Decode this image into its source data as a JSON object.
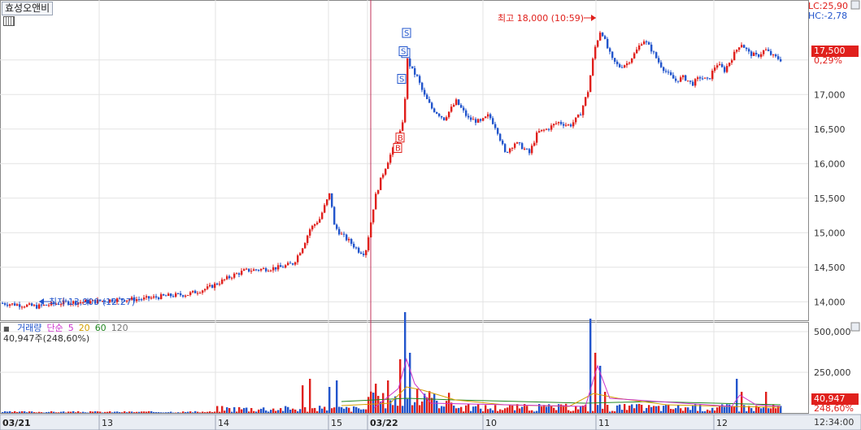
{
  "title": "효성오앤비",
  "limits": {
    "lc": "LC:25,90",
    "hc": "HC:-2,78"
  },
  "current": {
    "price_label": "17,500",
    "change_label": "0,29%",
    "price": 17500
  },
  "annotations": {
    "high_label": "최고 18,000 (10:59)",
    "high_value": 18000,
    "low_label": "최저 13,900 (12:27)",
    "low_value": 13900
  },
  "volume_panel": {
    "legend": {
      "name": "거래량",
      "ma_type": "단순",
      "periods": [
        "5",
        "20",
        "60",
        "120"
      ]
    },
    "readout": "40,947주(248,60%)",
    "current_label": "40,947",
    "ratio_label": "248,60%",
    "current_value": 40947
  },
  "x_axis": {
    "labels": [
      "03/21",
      "13",
      "14",
      "15",
      "03/22",
      "10",
      "11",
      "12"
    ],
    "time_readout": "12:34:00"
  },
  "colors": {
    "up": "#e0201c",
    "down": "#2255cc",
    "ma5": "#cc33cc",
    "ma20": "#d4a000",
    "ma60": "#228822",
    "ma120": "#777777",
    "grid": "#e3e3e3",
    "divider": "#c0305a"
  },
  "chart_data": {
    "type": "candlestick",
    "series": [
      {
        "name": "거래량",
        "type": "bar"
      }
    ],
    "y_price": {
      "ticks": [
        14000,
        14500,
        15000,
        15500,
        16000,
        16500,
        17000,
        17500
      ],
      "tick_labels": [
        "14,000",
        "14,500",
        "15,000",
        "15,500",
        "16,000",
        "16,500",
        "17,000",
        "17,500"
      ],
      "range": [
        13850,
        18250
      ]
    },
    "y_volume": {
      "ticks": [
        250000,
        500000
      ],
      "tick_labels": [
        "250,000",
        "500,000"
      ],
      "range": [
        0,
        560000
      ]
    },
    "trade_markers": [
      {
        "label": "S",
        "price": 17650
      },
      {
        "label": "S",
        "price": 17500
      },
      {
        "label": "S",
        "price": 17550
      },
      {
        "label": "S",
        "price": 17150
      },
      {
        "label": "B",
        "price": 16300
      },
      {
        "label": "B",
        "price": 16150
      }
    ],
    "close_path": [
      [
        0,
        13980
      ],
      [
        20,
        13960
      ],
      [
        45,
        13930
      ],
      [
        60,
        13960
      ],
      [
        80,
        13990
      ],
      [
        110,
        14000
      ],
      [
        140,
        14030
      ],
      [
        175,
        14040
      ],
      [
        200,
        14080
      ],
      [
        230,
        14110
      ],
      [
        255,
        14200
      ],
      [
        270,
        14290
      ],
      [
        285,
        14380
      ],
      [
        300,
        14450
      ],
      [
        320,
        14470
      ],
      [
        345,
        14500
      ],
      [
        360,
        14560
      ],
      [
        372,
        14820
      ],
      [
        380,
        15050
      ],
      [
        392,
        15200
      ],
      [
        398,
        15380
      ],
      [
        405,
        15580
      ],
      [
        410,
        15100
      ],
      [
        418,
        14980
      ],
      [
        428,
        14880
      ],
      [
        440,
        14740
      ],
      [
        448,
        14700
      ],
      [
        452,
        14950
      ],
      [
        460,
        15500
      ],
      [
        468,
        15800
      ],
      [
        478,
        16100
      ],
      [
        488,
        16350
      ],
      [
        495,
        16600
      ],
      [
        500,
        17500
      ],
      [
        506,
        17350
      ],
      [
        512,
        17250
      ],
      [
        520,
        17000
      ],
      [
        530,
        16800
      ],
      [
        545,
        16650
      ],
      [
        560,
        16900
      ],
      [
        575,
        16650
      ],
      [
        590,
        16600
      ],
      [
        600,
        16700
      ],
      [
        610,
        16500
      ],
      [
        620,
        16150
      ],
      [
        632,
        16300
      ],
      [
        640,
        16250
      ],
      [
        650,
        16150
      ],
      [
        660,
        16450
      ],
      [
        672,
        16500
      ],
      [
        685,
        16600
      ],
      [
        700,
        16550
      ],
      [
        712,
        16700
      ],
      [
        722,
        17050
      ],
      [
        730,
        17650
      ],
      [
        738,
        17950
      ],
      [
        745,
        17700
      ],
      [
        752,
        17500
      ],
      [
        760,
        17400
      ],
      [
        770,
        17450
      ],
      [
        780,
        17600
      ],
      [
        790,
        17800
      ],
      [
        800,
        17650
      ],
      [
        810,
        17450
      ],
      [
        820,
        17300
      ],
      [
        830,
        17200
      ],
      [
        840,
        17250
      ],
      [
        850,
        17150
      ],
      [
        860,
        17250
      ],
      [
        870,
        17200
      ],
      [
        880,
        17450
      ],
      [
        890,
        17350
      ],
      [
        900,
        17550
      ],
      [
        910,
        17750
      ],
      [
        920,
        17600
      ],
      [
        930,
        17550
      ],
      [
        940,
        17650
      ],
      [
        950,
        17550
      ],
      [
        960,
        17500
      ]
    ],
    "volume_spikes": [
      [
        490,
        330000
      ],
      [
        498,
        620000
      ],
      [
        503,
        370000
      ],
      [
        512,
        150000
      ],
      [
        726,
        580000
      ],
      [
        732,
        370000
      ],
      [
        737,
        290000
      ],
      [
        742,
        130000
      ],
      [
        905,
        210000
      ],
      [
        912,
        130000
      ],
      [
        940,
        130000
      ],
      [
        404,
        160000
      ],
      [
        412,
        200000
      ],
      [
        380,
        210000
      ],
      [
        372,
        170000
      ],
      [
        460,
        180000
      ],
      [
        477,
        200000
      ]
    ],
    "ma_paths": {
      "ma20": [
        [
          420,
          45000
        ],
        [
          480,
          60000
        ],
        [
          500,
          160000
        ],
        [
          520,
          140000
        ],
        [
          560,
          80000
        ],
        [
          620,
          50000
        ],
        [
          700,
          40000
        ],
        [
          730,
          120000
        ],
        [
          760,
          90000
        ],
        [
          820,
          50000
        ],
        [
          900,
          40000
        ],
        [
          960,
          35000
        ]
      ],
      "ma60": [
        [
          420,
          70000
        ],
        [
          500,
          90000
        ],
        [
          560,
          80000
        ],
        [
          640,
          70000
        ],
        [
          720,
          60000
        ],
        [
          800,
          70000
        ],
        [
          880,
          60000
        ],
        [
          960,
          50000
        ]
      ],
      "ma5": [
        [
          460,
          30000
        ],
        [
          490,
          150000
        ],
        [
          500,
          330000
        ],
        [
          510,
          180000
        ],
        [
          530,
          60000
        ],
        [
          720,
          40000
        ],
        [
          735,
          290000
        ],
        [
          750,
          90000
        ],
        [
          900,
          40000
        ],
        [
          910,
          110000
        ],
        [
          930,
          50000
        ],
        [
          960,
          40000
        ]
      ]
    }
  }
}
